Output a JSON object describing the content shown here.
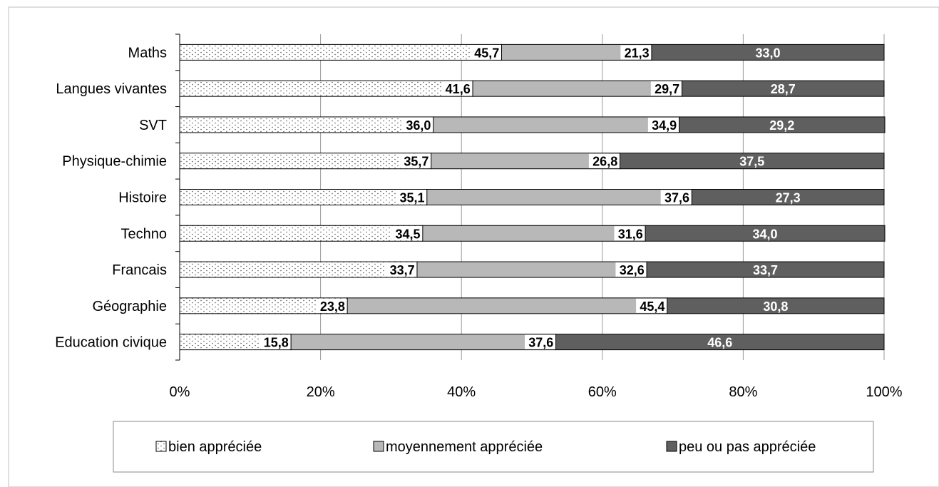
{
  "chart_data": {
    "type": "bar",
    "orientation": "horizontal",
    "stacked": "percent",
    "categories": [
      "Maths",
      "Langues vivantes",
      "SVT",
      "Physique-chimie",
      "Histoire",
      "Techno",
      "Francais",
      "Géographie",
      "Education civique"
    ],
    "series": [
      {
        "name": "bien appréciée",
        "fill": "dotted",
        "color": "#ffffff",
        "values": [
          45.7,
          41.6,
          36.0,
          35.7,
          35.1,
          34.5,
          33.7,
          23.8,
          15.8
        ],
        "labels": [
          "45,7",
          "41,6",
          "36,0",
          "35,7",
          "35,1",
          "34,5",
          "33,7",
          "23,8",
          "15,8"
        ]
      },
      {
        "name": "moyennement appréciée",
        "color": "#b8b8b8",
        "values": [
          21.3,
          29.7,
          34.9,
          26.8,
          37.6,
          31.6,
          32.6,
          45.4,
          37.6
        ],
        "labels": [
          "21,3",
          "29,7",
          "34,9",
          "26,8",
          "37,6",
          "31,6",
          "32,6",
          "45,4",
          "37,6"
        ]
      },
      {
        "name": "peu ou pas appréciée",
        "color": "#5f5f5f",
        "values": [
          33.0,
          28.7,
          29.2,
          37.5,
          27.3,
          34.0,
          33.7,
          30.8,
          46.6
        ],
        "labels": [
          "33,0",
          "28,7",
          "29,2",
          "37,5",
          "27,3",
          "34,0",
          "33,7",
          "30,8",
          "46,6"
        ]
      }
    ],
    "xlim": [
      0,
      100
    ],
    "x_ticks": [
      "0%",
      "20%",
      "40%",
      "60%",
      "80%",
      "100%"
    ],
    "grid": true,
    "legend_position": "bottom"
  }
}
